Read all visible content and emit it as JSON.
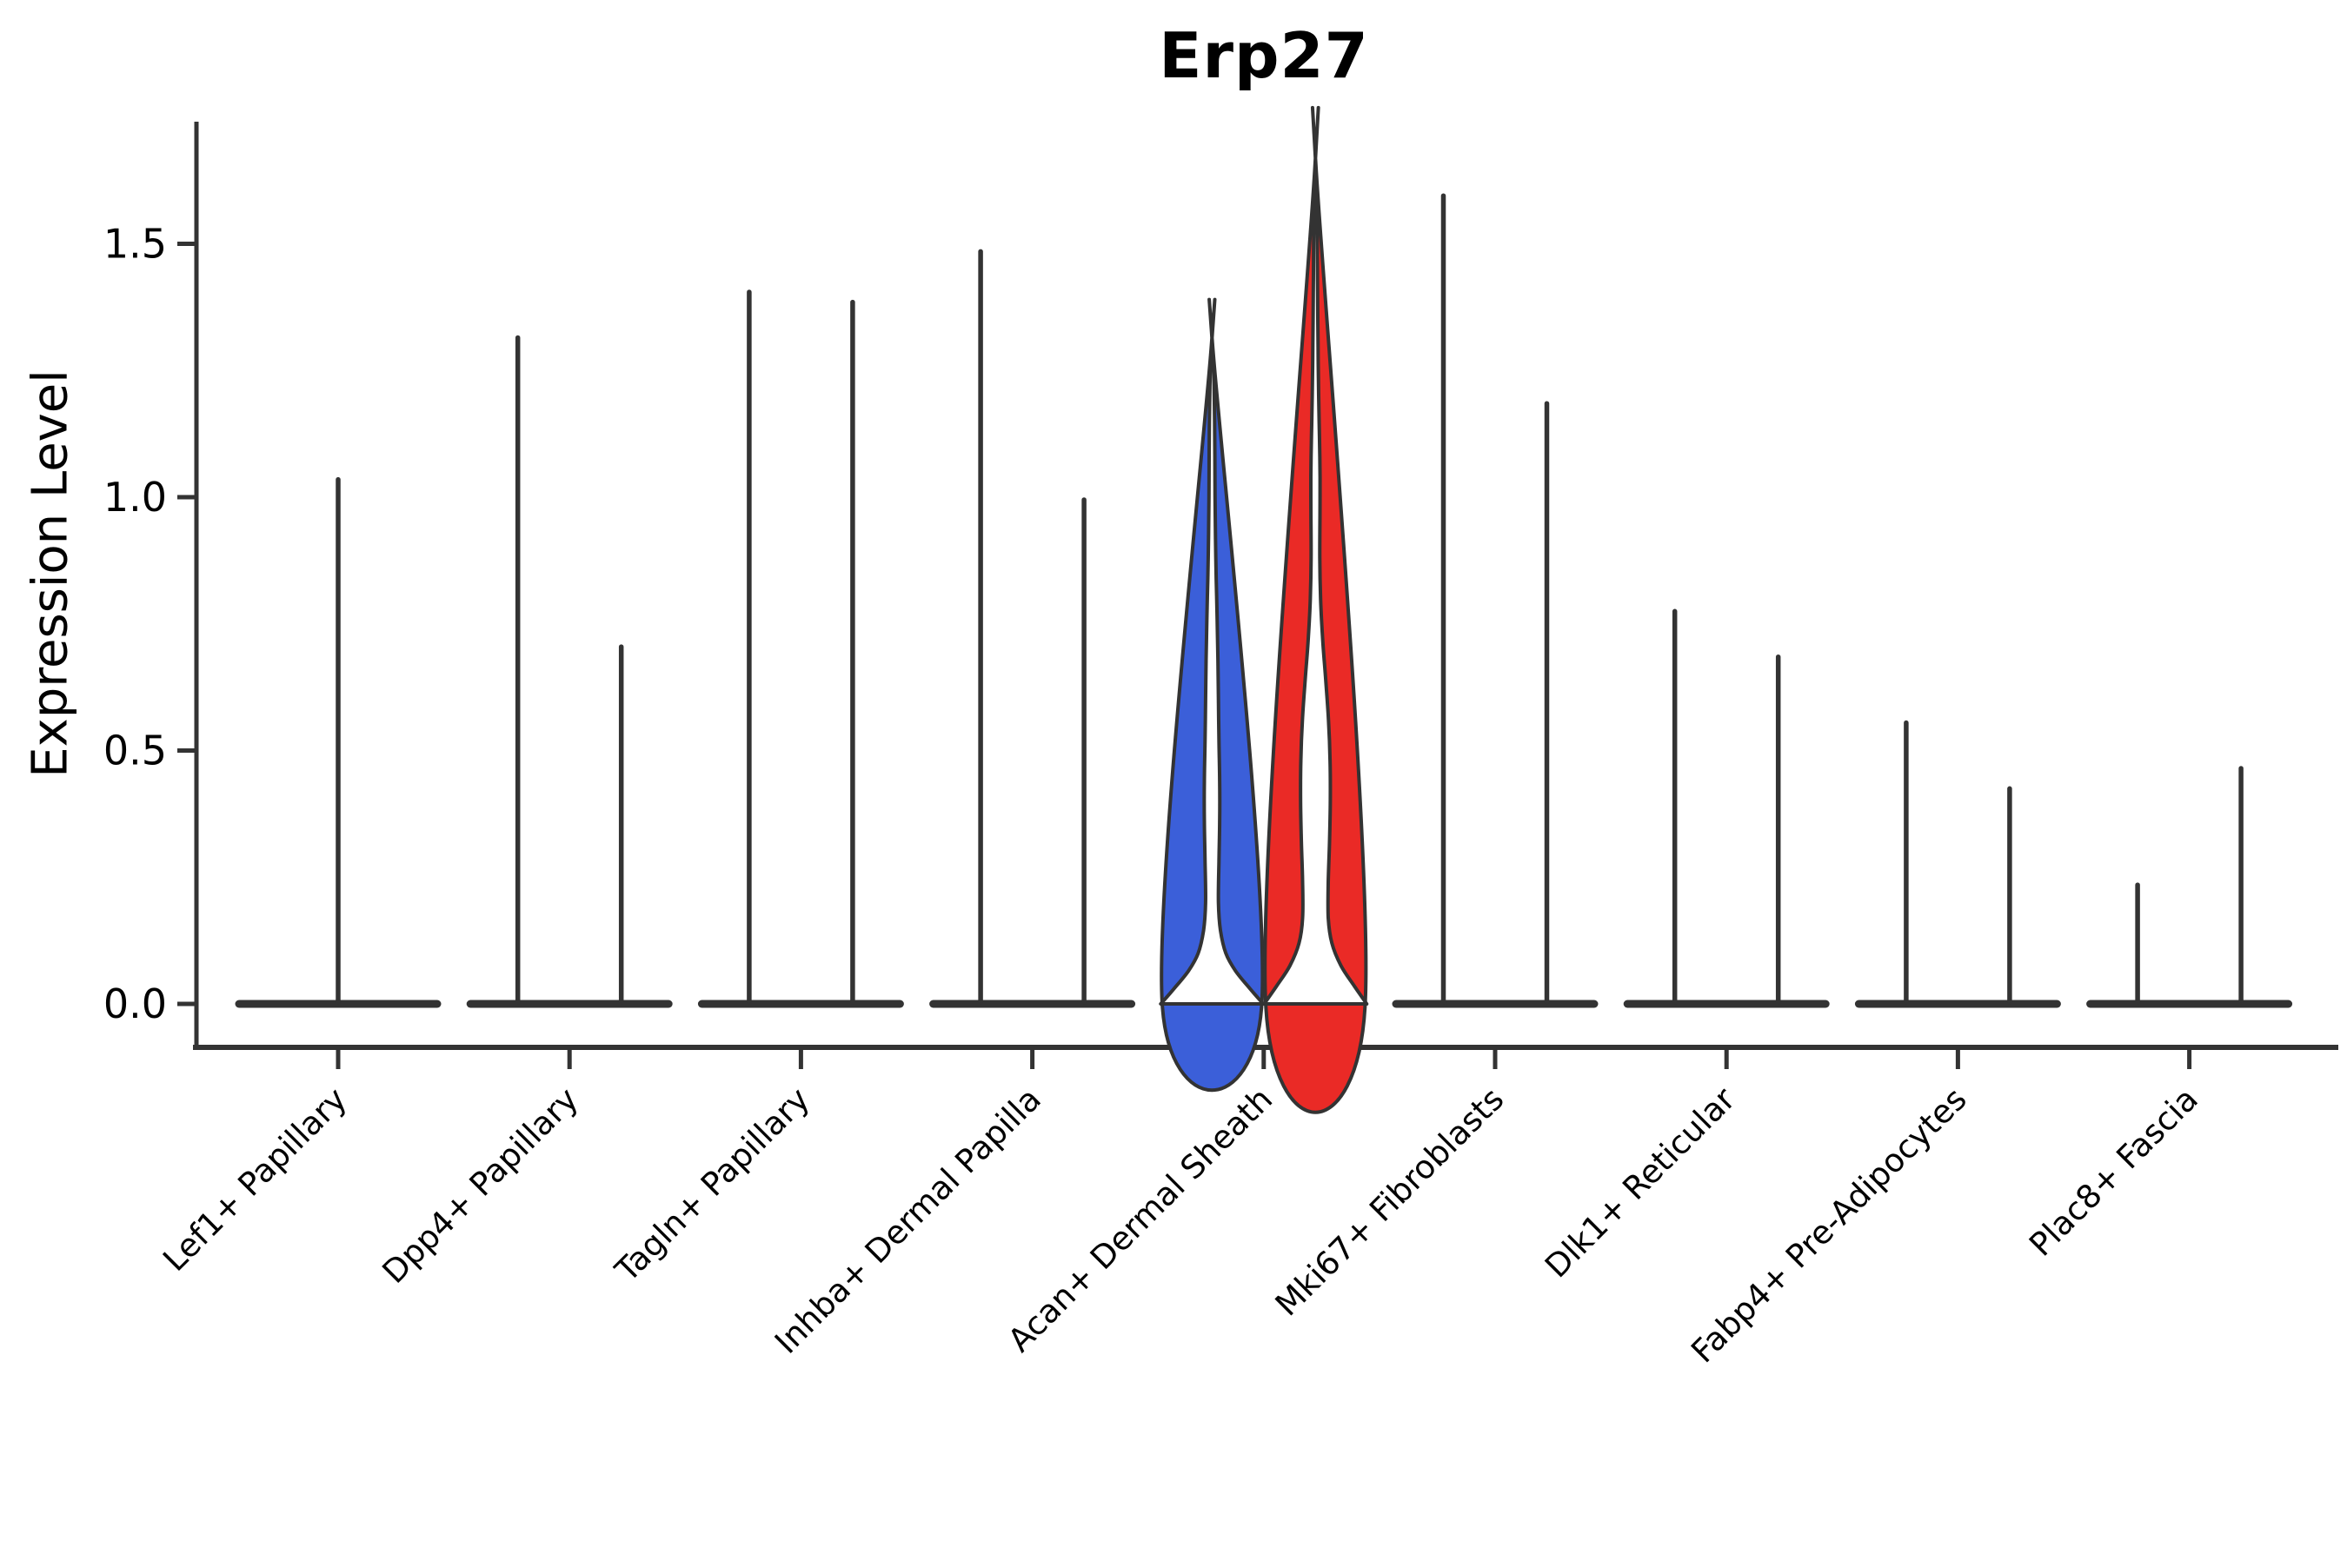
{
  "figure": {
    "title": "Erp27",
    "ylabel": "Expression Level",
    "background_color": "#ffffff",
    "text_color": "#000000"
  },
  "style": {
    "violin_outline_color": "#333333",
    "axis_color": "#000000",
    "blue_fill": "#3B5FD9",
    "red_fill": "#EA2A26"
  },
  "chart_data": {
    "type": "violin",
    "title": "Erp27",
    "xlabel": "",
    "ylabel": "Expression Level",
    "ylim": [
      -0.09,
      1.75
    ],
    "yticks": [
      0.0,
      0.5,
      1.0,
      1.5
    ],
    "ytick_labels": [
      "0.0",
      "0.5",
      "1.0",
      "1.5"
    ],
    "grid": false,
    "legend_position": "none",
    "x_tick_label_rotation_deg": 45,
    "categories": [
      "Lef1+ Papillary",
      "Dpp4+ Papillary",
      "Tagln+ Papillary",
      "Inhba+ Dermal Papilla",
      "Acan+ Dermal Sheath",
      "Mki67+ Fibroblasts",
      "Dlk1+ Reticular",
      "Fabp4+ Pre-Adipocytes",
      "Plac8+ Fascia"
    ],
    "groups": [
      {
        "category": "Lef1+ Papillary",
        "violins": [
          {
            "position": "center",
            "max_expression": 1.04,
            "shape": "collapsed",
            "fill": "#333333"
          }
        ]
      },
      {
        "category": "Dpp4+ Papillary",
        "violins": [
          {
            "position": "left",
            "max_expression": 1.32,
            "shape": "collapsed",
            "fill": "#333333"
          },
          {
            "position": "right",
            "max_expression": 0.71,
            "shape": "collapsed",
            "fill": "#333333"
          }
        ]
      },
      {
        "category": "Tagln+ Papillary",
        "violins": [
          {
            "position": "left",
            "max_expression": 1.41,
            "shape": "collapsed",
            "fill": "#333333"
          },
          {
            "position": "right",
            "max_expression": 1.39,
            "shape": "collapsed",
            "fill": "#333333"
          }
        ]
      },
      {
        "category": "Inhba+ Dermal Papilla",
        "violins": [
          {
            "position": "left",
            "max_expression": 1.49,
            "shape": "collapsed",
            "fill": "#333333"
          },
          {
            "position": "right",
            "max_expression": 1.0,
            "shape": "collapsed",
            "fill": "#333333"
          }
        ]
      },
      {
        "category": "Acan+ Dermal Sheath",
        "violins": [
          {
            "position": "left",
            "max_expression": 1.3,
            "shape": "expressed",
            "fill": "#3B5FD9",
            "profile": [
              [
                0,
                1.0
              ],
              [
                0.03,
                0.74
              ],
              [
                0.065,
                0.46
              ],
              [
                0.1,
                0.27
              ],
              [
                0.145,
                0.165
              ],
              [
                0.2,
                0.125
              ],
              [
                0.28,
                0.135
              ],
              [
                0.36,
                0.15
              ],
              [
                0.44,
                0.15
              ],
              [
                0.52,
                0.135
              ],
              [
                0.6,
                0.125
              ],
              [
                0.68,
                0.115
              ],
              [
                0.76,
                0.1
              ],
              [
                0.84,
                0.082
              ],
              [
                0.92,
                0.068
              ],
              [
                1.0,
                0.06
              ],
              [
                1.08,
                0.056
              ],
              [
                1.15,
                0.05
              ],
              [
                1.22,
                0.04
              ],
              [
                1.27,
                0.028
              ],
              [
                1.3,
                0.012
              ]
            ]
          },
          {
            "position": "right",
            "max_expression": 1.65,
            "shape": "expressed",
            "fill": "#EA2A26",
            "profile": [
              [
                0,
                1.0
              ],
              [
                0.035,
                0.76
              ],
              [
                0.075,
                0.5
              ],
              [
                0.12,
                0.32
              ],
              [
                0.17,
                0.25
              ],
              [
                0.24,
                0.25
              ],
              [
                0.32,
                0.275
              ],
              [
                0.4,
                0.29
              ],
              [
                0.48,
                0.285
              ],
              [
                0.56,
                0.255
              ],
              [
                0.64,
                0.2
              ],
              [
                0.72,
                0.14
              ],
              [
                0.8,
                0.1
              ],
              [
                0.88,
                0.085
              ],
              [
                0.96,
                0.088
              ],
              [
                1.04,
                0.09
              ],
              [
                1.12,
                0.078
              ],
              [
                1.2,
                0.062
              ],
              [
                1.3,
                0.05
              ],
              [
                1.4,
                0.042
              ],
              [
                1.5,
                0.035
              ],
              [
                1.58,
                0.028
              ],
              [
                1.63,
                0.02
              ],
              [
                1.65,
                0.012
              ]
            ]
          }
        ]
      },
      {
        "category": "Mki67+ Fibroblasts",
        "violins": [
          {
            "position": "left",
            "max_expression": 1.6,
            "shape": "collapsed",
            "fill": "#333333"
          },
          {
            "position": "right",
            "max_expression": 1.19,
            "shape": "collapsed",
            "fill": "#333333"
          }
        ]
      },
      {
        "category": "Dlk1+ Reticular",
        "violins": [
          {
            "position": "left",
            "max_expression": 0.78,
            "shape": "collapsed",
            "fill": "#333333"
          },
          {
            "position": "right",
            "max_expression": 0.69,
            "shape": "collapsed",
            "fill": "#333333"
          }
        ]
      },
      {
        "category": "Fabp4+ Pre-Adipocytes",
        "violins": [
          {
            "position": "left",
            "max_expression": 0.56,
            "shape": "collapsed",
            "fill": "#333333"
          },
          {
            "position": "right",
            "max_expression": 0.43,
            "shape": "collapsed",
            "fill": "#333333"
          }
        ]
      },
      {
        "category": "Plac8+ Fascia",
        "violins": [
          {
            "position": "left",
            "max_expression": 0.24,
            "shape": "collapsed",
            "fill": "#333333"
          },
          {
            "position": "right",
            "max_expression": 0.47,
            "shape": "collapsed",
            "fill": "#333333"
          }
        ]
      }
    ]
  }
}
